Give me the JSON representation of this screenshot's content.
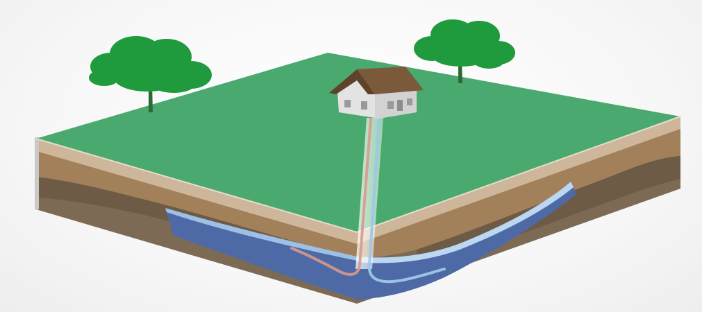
{
  "colors": {
    "background": "#f6f6f6",
    "grass": "#4aa96f",
    "grass_edge": "#3f9462",
    "topsoil_light": "#cdb69a",
    "soil_mid": "#a2815a",
    "soil_dark": "#6e5b45",
    "soil_deep": "#7d6a55",
    "aquifer": "#4e6aa6",
    "aquifer_light": "#bcd7f2",
    "tree_foliage": "#1f9a3c",
    "tree_trunk": "#2c6a33",
    "house_wall": "#e3e3e3",
    "house_roof": "#7a5a3a",
    "pipe_supply": "#d99a8a",
    "pipe_return": "#9dc8e8"
  },
  "icons": [
    "tree-icon",
    "house-icon"
  ]
}
